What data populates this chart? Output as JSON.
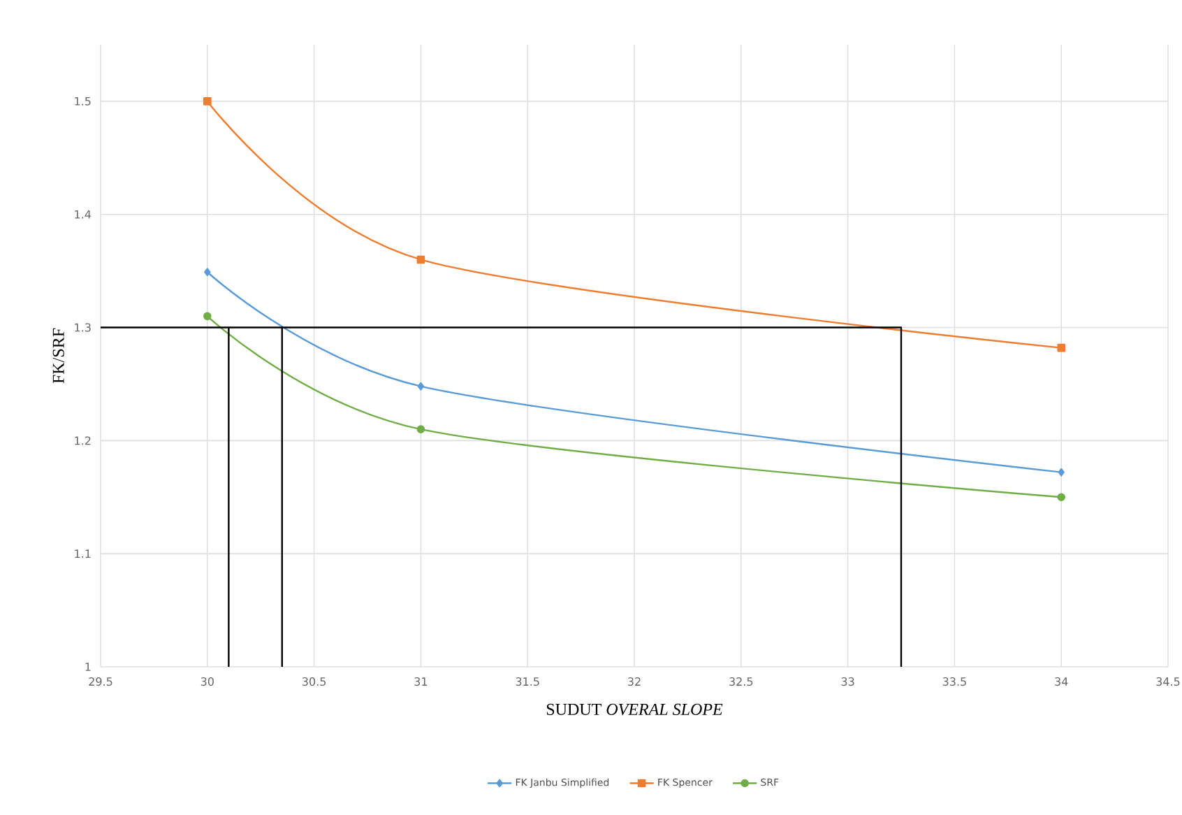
{
  "chart_data": {
    "type": "line",
    "xlabel": "SUDUT *OVERAL SLOPE*",
    "ylabel": "FK/SRF",
    "xlim": [
      29.5,
      34.5
    ],
    "ylim": [
      1,
      1.55
    ],
    "xticks": [
      29.5,
      30,
      30.5,
      31,
      31.5,
      32,
      32.5,
      33,
      33.5,
      34,
      34.5
    ],
    "yticks": [
      1,
      1.1,
      1.2,
      1.3,
      1.4,
      1.5
    ],
    "grid": true,
    "legend": "bottom",
    "series": [
      {
        "name": "FK Janbu Simplified",
        "color": "#5b9bd5",
        "x": [
          30,
          31,
          34
        ],
        "values": [
          1.349,
          1.248,
          1.172
        ],
        "marker": "diamond"
      },
      {
        "name": "FK Spencer",
        "color": "#ed7d31",
        "x": [
          30,
          31,
          34
        ],
        "values": [
          1.5,
          1.36,
          1.282
        ],
        "marker": "square"
      },
      {
        "name": "SRF",
        "color": "#70ad47",
        "x": [
          30,
          31,
          34
        ],
        "values": [
          1.31,
          1.21,
          1.15
        ],
        "marker": "circle"
      },
      {
        "color": "#000000",
        "x": [
          29.5,
          33.25,
          33.25
        ],
        "values": [
          1.3,
          1.3,
          1
        ],
        "marker": "none"
      },
      {
        "color": "#000000",
        "x": [
          30.1,
          30.1
        ],
        "values": [
          1.3,
          1
        ],
        "marker": "none"
      },
      {
        "color": "#000000",
        "x": [
          30.35,
          30.35
        ],
        "values": [
          1.3,
          1
        ],
        "marker": "none"
      }
    ]
  }
}
